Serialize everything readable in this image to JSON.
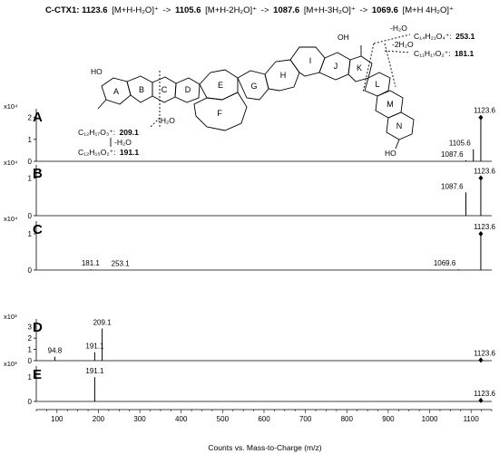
{
  "header": {
    "compound": "C-CTX1:",
    "m1": "1123.6",
    "i1": "[M+H-H₂O]⁺",
    "m2": "1105.6",
    "i2": "[M+H-2H₂O]⁺",
    "m3": "1087.6",
    "i3": "[M+H-3H₂O]⁺",
    "m4": "1069.6",
    "i4": "[M+H 4H₂O]⁺",
    "arrow": "->"
  },
  "structure": {
    "rings": [
      "A",
      "B",
      "C",
      "D",
      "E",
      "F",
      "G",
      "H",
      "I",
      "J",
      "K",
      "L",
      "M",
      "N"
    ],
    "labels": {
      "ho": "HO",
      "oh_top": "OH",
      "oh_bottom": "HO",
      "frag1_loss": "-H₂O",
      "frag1_formula": "C₁₄H₂₁O₄⁺:",
      "frag1_mz": "253.1",
      "frag2_loss": "-2H₂O",
      "frag2_formula": "C₁₁H₁₇O₂⁺:",
      "frag2_mz": "181.1",
      "frag3_loss": "-H₂O",
      "frag3_formula": "C₁₂H₁₇O₃⁺:",
      "frag3_mz": "209.1",
      "frag4_loss": "-H₂O",
      "frag4_formula": "C₁₂H₁₅O₂⁺:",
      "frag4_mz": "191.1"
    }
  },
  "chart_data": [
    {
      "type": "bar",
      "panel": "A",
      "scale_label": "x10⁴",
      "yticks": [
        "0",
        "1",
        "2"
      ],
      "ylim": [
        0,
        2.4
      ],
      "peaks": [
        {
          "mz": 1087.6,
          "intensity": 0.05,
          "label": "1087.6"
        },
        {
          "mz": 1105.6,
          "intensity": 0.55,
          "label": "1105.6"
        },
        {
          "mz": 1123.6,
          "intensity": 2.0,
          "label": "1123.6",
          "marker": true
        }
      ]
    },
    {
      "type": "bar",
      "panel": "B",
      "scale_label": "x10⁴",
      "yticks": [
        "0",
        "1"
      ],
      "ylim": [
        0,
        1.35
      ],
      "peaks": [
        {
          "mz": 1087.6,
          "intensity": 0.62,
          "label": "1087.6"
        },
        {
          "mz": 1123.6,
          "intensity": 1.0,
          "label": "1123.6",
          "marker": true
        }
      ]
    },
    {
      "type": "bar",
      "panel": "C",
      "scale_label": "x10⁴",
      "yticks": [
        "0",
        "1"
      ],
      "ylim": [
        0,
        1.35
      ],
      "peaks": [
        {
          "mz": 181.1,
          "intensity": 0.02,
          "label": "181.1"
        },
        {
          "mz": 253.1,
          "intensity": 0.01,
          "label": "253.1"
        },
        {
          "mz": 1069.6,
          "intensity": 0.02,
          "label": "1069.6"
        },
        {
          "mz": 1123.6,
          "intensity": 1.0,
          "label": "1123.6",
          "marker": true
        }
      ]
    },
    {
      "type": "bar",
      "panel": "D",
      "scale_label": "x10³",
      "yticks": [
        "0",
        "1",
        "2",
        "3"
      ],
      "ylim": [
        0,
        3.7
      ],
      "peaks": [
        {
          "mz": 94.8,
          "intensity": 0.35,
          "label": "94.8"
        },
        {
          "mz": 191.1,
          "intensity": 0.75,
          "label": "191.1"
        },
        {
          "mz": 209.1,
          "intensity": 2.85,
          "label": "209.1"
        },
        {
          "mz": 1123.6,
          "intensity": 0.05,
          "label": "1123.6",
          "marker": true
        }
      ]
    },
    {
      "type": "bar",
      "panel": "E",
      "scale_label": "x10³",
      "yticks": [
        "0",
        "1"
      ],
      "ylim": [
        0,
        1.45
      ],
      "peaks": [
        {
          "mz": 191.1,
          "intensity": 1.0,
          "label": "191.1"
        },
        {
          "mz": 1123.6,
          "intensity": 0.04,
          "label": "1123.6",
          "marker": true
        }
      ]
    }
  ],
  "xaxis": {
    "label": "Counts vs. Mass-to-Charge (m/z)",
    "ticks": [
      100,
      200,
      300,
      400,
      500,
      600,
      700,
      800,
      900,
      1000,
      1100
    ],
    "xlim": [
      50,
      1150
    ]
  }
}
